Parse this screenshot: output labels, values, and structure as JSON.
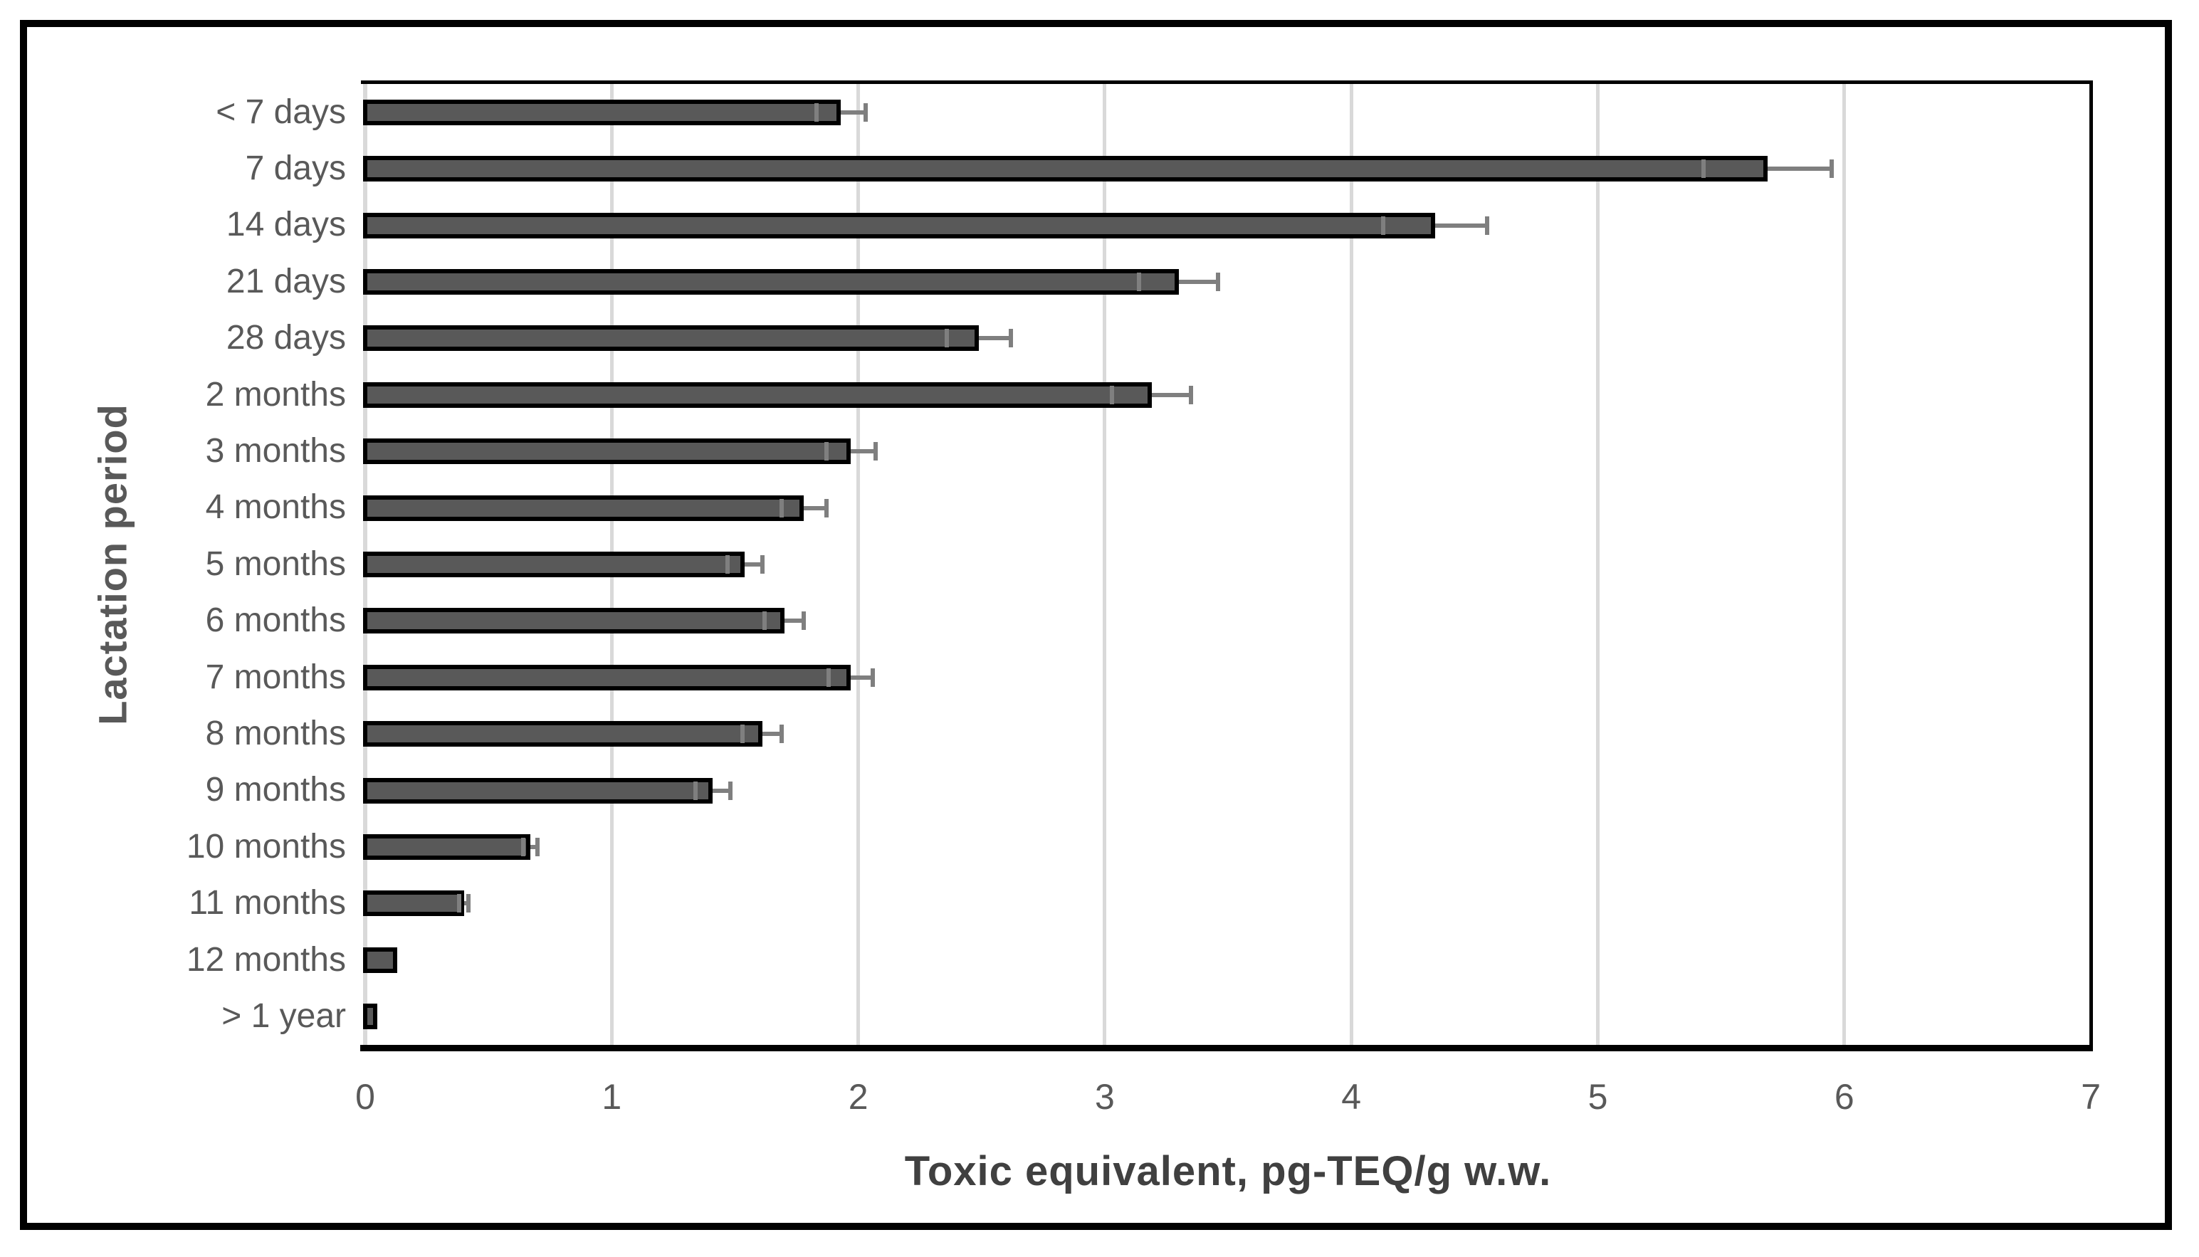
{
  "chart_data": {
    "type": "bar",
    "orientation": "horizontal",
    "title": "",
    "xlabel": "Toxic equivalent, pg-TEQ/g w.w.",
    "ylabel": "Lactation period",
    "xlim": [
      0,
      7
    ],
    "xticks": [
      0,
      1,
      2,
      3,
      4,
      5,
      6,
      7
    ],
    "grid": true,
    "categories": [
      "< 7 days",
      "7 days",
      "14 days",
      "21 days",
      "28 days",
      "2 months",
      "3 months",
      "4 months",
      "5 months",
      "6 months",
      "7 months",
      "8 months",
      "9 months",
      "10 months",
      "11 months",
      "12 months",
      "> 1 year"
    ],
    "values": [
      1.93,
      5.69,
      4.34,
      3.3,
      2.49,
      3.19,
      1.97,
      1.78,
      1.54,
      1.7,
      1.97,
      1.61,
      1.41,
      0.67,
      0.4,
      0.13,
      0.05
    ],
    "errors": [
      0.1,
      0.26,
      0.21,
      0.16,
      0.13,
      0.16,
      0.1,
      0.09,
      0.07,
      0.08,
      0.09,
      0.08,
      0.07,
      0.03,
      0.02,
      0,
      0
    ],
    "series_name": "Toxic equivalent",
    "legend": false,
    "colors": {
      "bar_fill": "#595959",
      "bar_border": "#000000",
      "error_bar": "#7f7f7f",
      "gridline": "#d9d9d9",
      "zero_axis_line": "#d9d9d9",
      "plot_border": "#000000",
      "x_axis_line": "#000000",
      "tick_label": "#595959",
      "category_label": "#595959",
      "x_title_color": "#404040",
      "y_title_color": "#595959",
      "figure_border": "#000000",
      "background": "#ffffff"
    }
  }
}
